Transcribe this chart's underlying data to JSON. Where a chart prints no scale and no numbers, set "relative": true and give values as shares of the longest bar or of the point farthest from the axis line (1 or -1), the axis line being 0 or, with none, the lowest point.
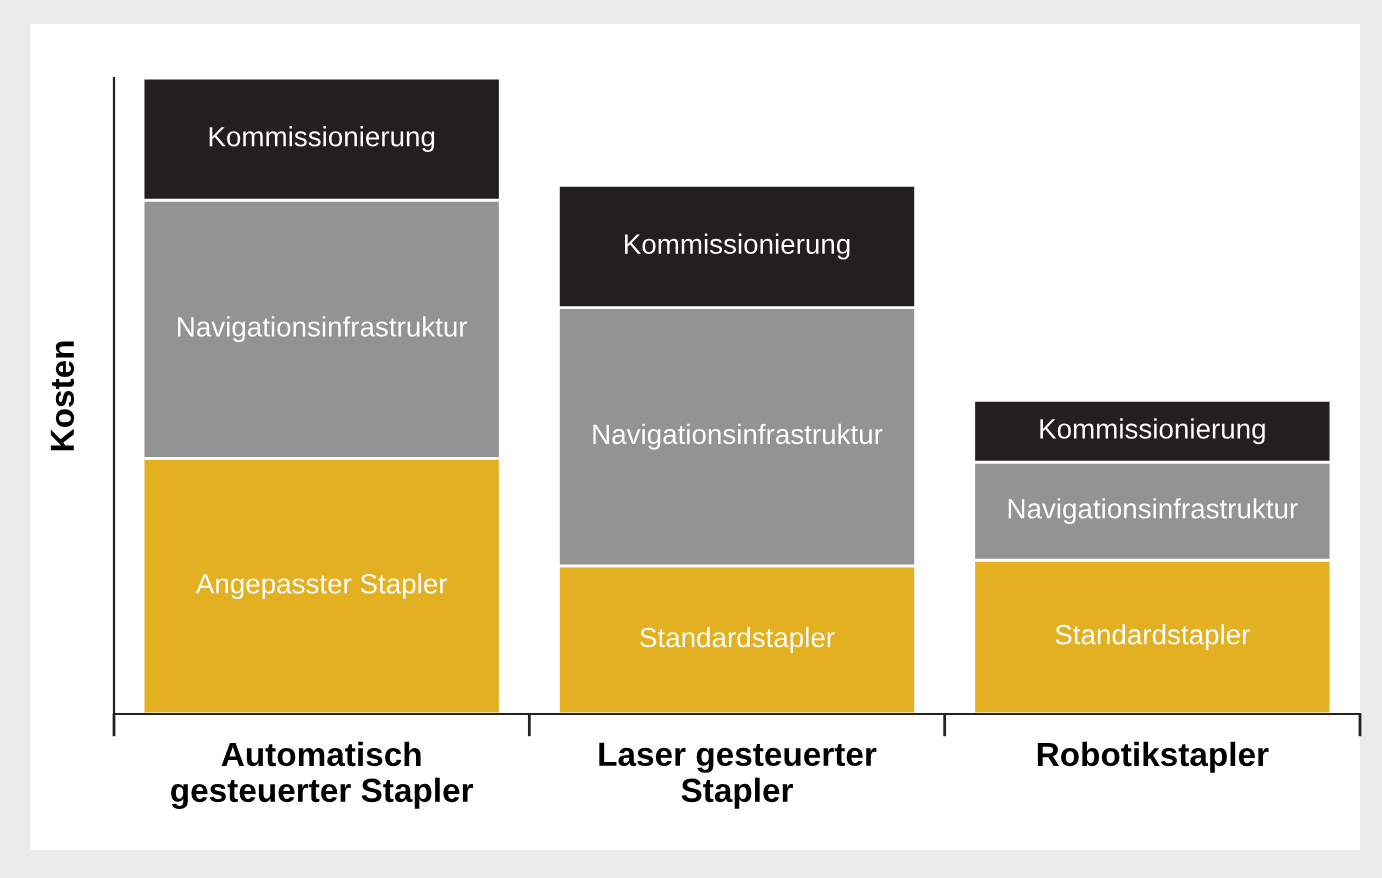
{
  "chart_data": {
    "type": "bar",
    "stacked": true,
    "relative": true,
    "ylabel": "Kosten",
    "categories": [
      "Automatisch\ngesteuerter Stapler",
      "Laser gesteuerter\nStapler",
      "Robotikstapler"
    ],
    "series": [
      {
        "color": "#e3b022",
        "values": [
          0.402,
          0.233,
          0.242
        ]
      },
      {
        "color": "#939393",
        "values": [
          0.406,
          0.406,
          0.154
        ]
      },
      {
        "color": "#231f20",
        "values": [
          0.192,
          0.192,
          0.097
        ]
      }
    ],
    "annotations": [
      "Angepasster Stapler",
      "Navigationsinfrastruktur",
      "Kommissionierung",
      "Standardstapler",
      "Navigationsinfrastruktur",
      "Kommissionierung",
      "Standardstapler",
      "Navigationsinfrastruktur",
      "Kommissionierung"
    ],
    "grid": false
  }
}
